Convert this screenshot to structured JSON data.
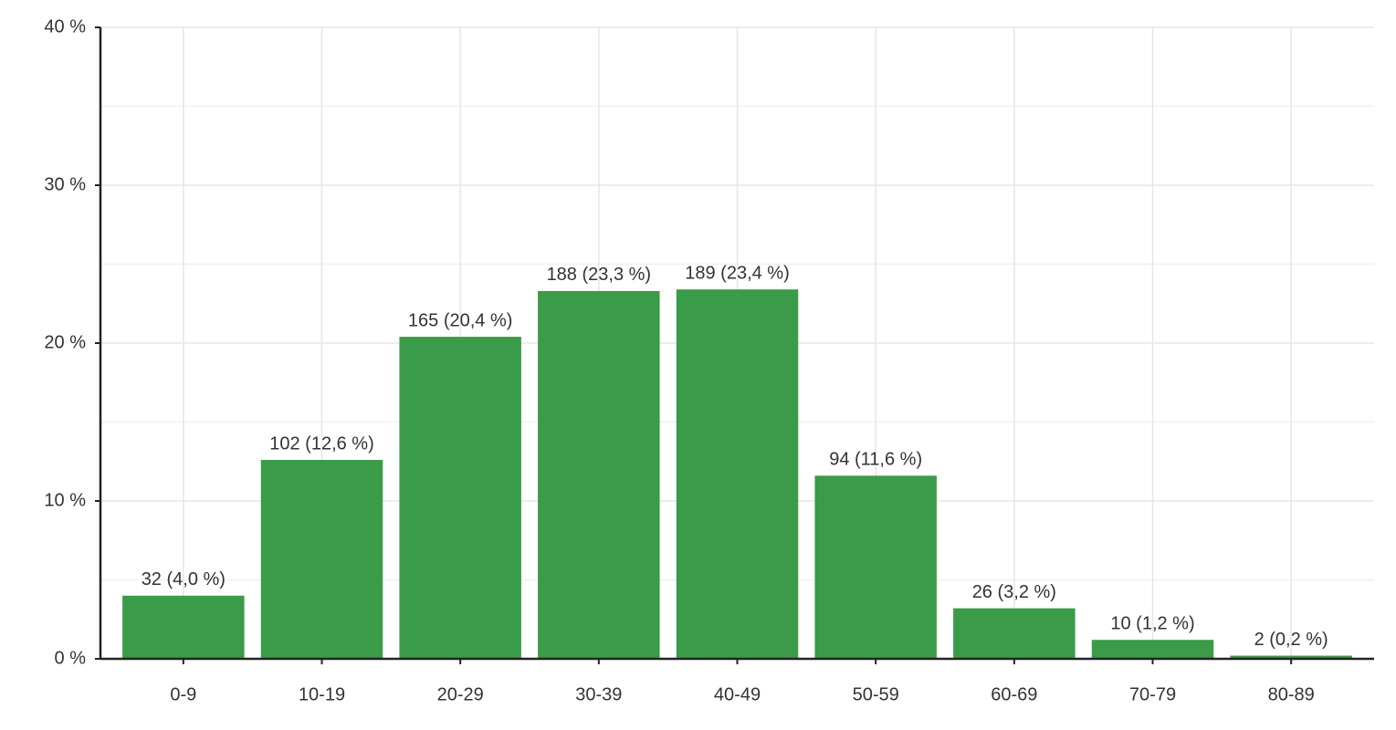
{
  "chart_data": {
    "type": "bar",
    "categories": [
      "0-9",
      "10-19",
      "20-29",
      "30-39",
      "40-49",
      "50-59",
      "60-69",
      "70-79",
      "80-89"
    ],
    "values": [
      4.0,
      12.6,
      20.4,
      23.3,
      23.4,
      11.6,
      3.2,
      1.2,
      0.2
    ],
    "value_labels": [
      "32 (4,0 %)",
      "102 (12,6 %)",
      "165 (20,4 %)",
      "188 (23,3 %)",
      "189 (23,4 %)",
      "94 (11,6 %)",
      "26 (3,2 %)",
      "10 (1,2 %)",
      "2 (0,2 %)"
    ],
    "color": "#3a9b48",
    "ylim": [
      0,
      40
    ],
    "yticks": [
      {
        "value": 0,
        "label": "0 %"
      },
      {
        "value": 10,
        "label": "10 %"
      },
      {
        "value": 20,
        "label": "20 %"
      },
      {
        "value": 30,
        "label": "30 %"
      },
      {
        "value": 40,
        "label": "40 %"
      }
    ],
    "grid": true
  }
}
